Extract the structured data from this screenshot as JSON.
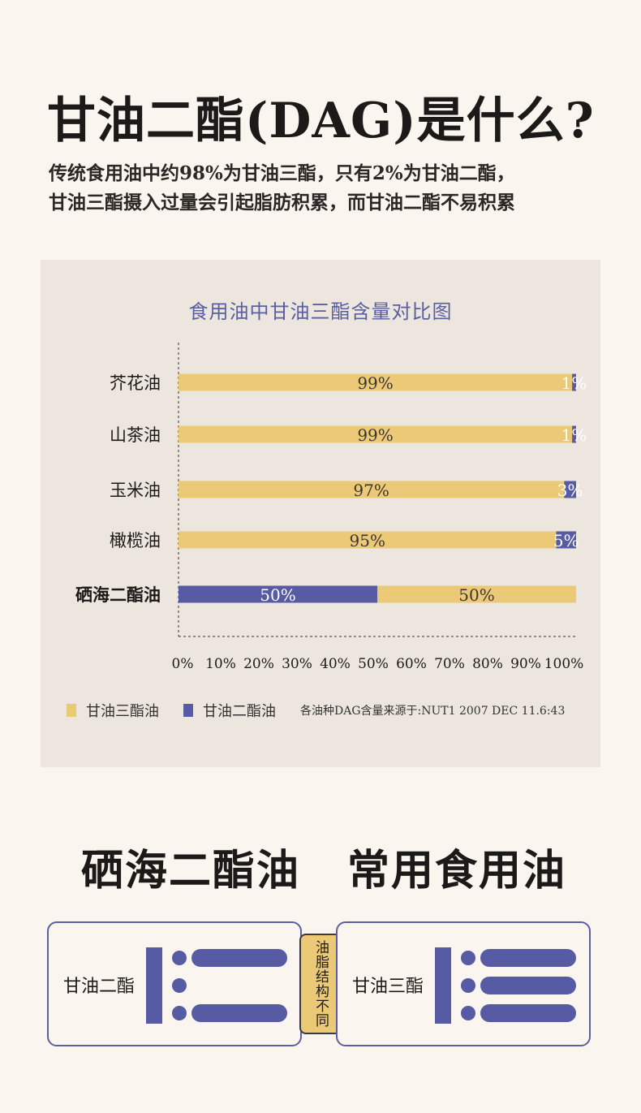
{
  "header": {
    "title": "甘油二酯(DAG)是什么?",
    "intro_line1": "传统食用油中约98%为甘油三酯，只有2%为甘油二酯，",
    "intro_line2": "甘油三酯摄入过量会引起脂肪积累，而甘油二酯不易积累"
  },
  "colors": {
    "tag": "#ecc977",
    "dag": "#575ba3",
    "background": "#faf5ef",
    "panel": "#ece6df"
  },
  "chart_data": {
    "type": "bar",
    "orientation": "horizontal",
    "stacked": true,
    "title": "食用油中甘油三酯含量对比图",
    "categories": [
      "芥花油",
      "山茶油",
      "玉米油",
      "橄榄油",
      "硒海二酯油"
    ],
    "series": [
      {
        "name": "甘油三酯油",
        "values": [
          99,
          99,
          97,
          95,
          50
        ],
        "color": "#ecc977",
        "text_color": "#3a3530"
      },
      {
        "name": "甘油二酯油",
        "values": [
          1,
          1,
          3,
          5,
          50
        ],
        "color": "#575ba3",
        "text_color": "#ffffff"
      }
    ],
    "order_note": "last category draws 甘油二酯油 first",
    "value_labels": [
      [
        "99%",
        "1%"
      ],
      [
        "99%",
        "1%"
      ],
      [
        "97%",
        "3%"
      ],
      [
        "95%",
        "5%"
      ],
      [
        "50%",
        "50%"
      ]
    ],
    "xlim": [
      0,
      100
    ],
    "xticks": [
      "0%",
      "10%",
      "20%",
      "30%",
      "40%",
      "50%",
      "60%",
      "70%",
      "80%",
      "90%",
      "100%"
    ],
    "xlabel": "",
    "ylabel": "",
    "legend": "bottom-left",
    "source": "各油种DAG含量来源于:NUT1 2007 DEC 11.6:43"
  },
  "compare": {
    "left_title": "硒海二酯油",
    "right_title": "常用食用油",
    "left_label": "甘油二酯",
    "right_label": "甘油三酯",
    "middle_tag": "油脂结构不同"
  }
}
